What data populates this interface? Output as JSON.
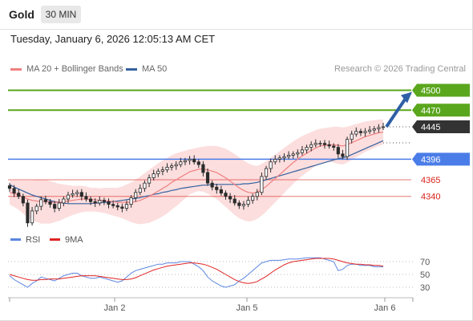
{
  "header": {
    "instrument": "Gold",
    "timeframe": "30 MIN",
    "timestamp": "Tuesday, January 6, 2026 12:05:13 AM CET"
  },
  "legend": {
    "ma_bands": "MA 20 + Bollinger Bands",
    "ma50": "MA 50",
    "credit": "Research © 2026 Trading Central"
  },
  "colors": {
    "candle": "#2b2b2b",
    "ma20": "#f08080",
    "bands": "#fcdede",
    "ma50": "#34619e",
    "resistance": "#5aa61d",
    "support": "#4b7de8",
    "support_text": "#d9231c",
    "current": "#333333",
    "rsi": "#5b86e0",
    "rsi_ma": "#e02424",
    "arrow": "#2f5fa6"
  },
  "chart_data": [
    {
      "type": "candlestick",
      "x_ticks": [
        "Jan 2",
        "Jan 5",
        "Jan 6"
      ],
      "ylim": [
        4290,
        4520
      ],
      "grid": false,
      "legend_position": "top-left",
      "price_levels": [
        {
          "label": "4500",
          "value": 4500,
          "kind": "resistance"
        },
        {
          "label": "4470",
          "value": 4470,
          "kind": "resistance"
        },
        {
          "label": "4445",
          "value": 4445,
          "kind": "current"
        },
        {
          "label": "4396",
          "value": 4396,
          "kind": "support-line"
        },
        {
          "label": "4365",
          "value": 4365,
          "kind": "support"
        },
        {
          "label": "4340",
          "value": 4340,
          "kind": "support"
        }
      ],
      "close": [
        4352,
        4345,
        4340,
        4330,
        4300,
        4318,
        4325,
        4335,
        4332,
        4328,
        4322,
        4330,
        4336,
        4342,
        4344,
        4346,
        4340,
        4336,
        4332,
        4330,
        4334,
        4332,
        4328,
        4326,
        4324,
        4322,
        4328,
        4338,
        4346,
        4352,
        4360,
        4368,
        4374,
        4378,
        4380,
        4384,
        4386,
        4388,
        4392,
        4394,
        4396,
        4392,
        4388,
        4376,
        4360,
        4354,
        4350,
        4345,
        4340,
        4336,
        4330,
        4326,
        4328,
        4334,
        4340,
        4346,
        4370,
        4382,
        4392,
        4396,
        4398,
        4400,
        4402,
        4404,
        4406,
        4410,
        4414,
        4418,
        4420,
        4420,
        4418,
        4416,
        4414,
        4404,
        4400,
        4426,
        4434,
        4438,
        4436,
        4438,
        4440,
        4442,
        4444,
        4445
      ],
      "ma20": [
        4346,
        4344,
        4342,
        4339,
        4336,
        4334,
        4333,
        4332,
        4332,
        4331,
        4331,
        4331,
        4332,
        4333,
        4334,
        4335,
        4336,
        4336,
        4335,
        4335,
        4334,
        4334,
        4333,
        4332,
        4331,
        4331,
        4331,
        4331,
        4332,
        4334,
        4337,
        4340,
        4344,
        4348,
        4352,
        4356,
        4361,
        4365,
        4369,
        4373,
        4377,
        4379,
        4381,
        4381,
        4380,
        4378,
        4376,
        4372,
        4368,
        4363,
        4358,
        4353,
        4349,
        4346,
        4345,
        4346,
        4350,
        4355,
        4361,
        4367,
        4373,
        4379,
        4385,
        4391,
        4396,
        4401,
        4405,
        4409,
        4413,
        4416,
        4417,
        4418,
        4418,
        4417,
        4416,
        4418,
        4421,
        4424,
        4427,
        4430,
        4432,
        4434,
        4436,
        4437
      ],
      "ma50": [
        4358,
        4354,
        4351,
        4348,
        4345,
        4342,
        4340,
        4338,
        4336,
        4334,
        4332,
        4331,
        4330,
        4329,
        4329,
        4329,
        4329,
        4329,
        4329,
        4330,
        4330,
        4331,
        4331,
        4332,
        4333,
        4334,
        4335,
        4336,
        4337,
        4338,
        4340,
        4341,
        4343,
        4344,
        4346,
        4347,
        4349,
        4350,
        4352,
        4353,
        4354,
        4355,
        4356,
        4357,
        4357,
        4358,
        4358,
        4358,
        4358,
        4358,
        4358,
        4358,
        4359,
        4359,
        4360,
        4361,
        4363,
        4365,
        4367,
        4369,
        4371,
        4373,
        4375,
        4377,
        4379,
        4381,
        4383,
        4385,
        4387,
        4389,
        4391,
        4393,
        4395,
        4397,
        4398,
        4400,
        4403,
        4406,
        4409,
        4412,
        4415,
        4418,
        4421,
        4424
      ],
      "band_half_width": [
        18,
        20,
        22,
        25,
        28,
        30,
        32,
        33,
        33,
        32,
        30,
        28,
        26,
        24,
        22,
        21,
        20,
        19,
        18,
        18,
        18,
        19,
        20,
        21,
        22,
        24,
        27,
        30,
        33,
        36,
        38,
        40,
        41,
        42,
        42,
        42,
        41,
        40,
        38,
        36,
        34,
        33,
        33,
        34,
        36,
        38,
        40,
        42,
        44,
        45,
        46,
        46,
        45,
        44,
        42,
        40,
        39,
        38,
        37,
        36,
        35,
        34,
        33,
        32,
        31,
        30,
        29,
        28,
        27,
        26,
        26,
        26,
        27,
        28,
        28,
        27,
        26,
        25,
        24,
        23,
        22,
        21,
        20,
        19
      ]
    },
    {
      "type": "line",
      "legend": [
        "RSI",
        "9MA"
      ],
      "ylim": [
        20,
        80
      ],
      "y_ticks": [
        70,
        50,
        30
      ],
      "rsi": [
        48,
        42,
        38,
        34,
        30,
        36,
        40,
        46,
        44,
        42,
        40,
        44,
        48,
        50,
        52,
        52,
        48,
        46,
        44,
        44,
        46,
        44,
        42,
        40,
        38,
        40,
        46,
        52,
        56,
        58,
        60,
        62,
        64,
        66,
        66,
        68,
        68,
        68,
        70,
        70,
        70,
        66,
        62,
        56,
        46,
        40,
        36,
        32,
        30,
        32,
        34,
        40,
        44,
        50,
        56,
        62,
        68,
        70,
        72,
        72,
        72,
        73,
        74,
        74,
        74,
        75,
        76,
        76,
        76,
        76,
        74,
        72,
        70,
        56,
        58,
        64,
        66,
        66,
        64,
        64,
        64,
        62,
        62,
        62
      ],
      "rsi_ma": [
        50,
        48,
        46,
        44,
        42,
        41,
        41,
        42,
        42,
        43,
        43,
        43,
        44,
        45,
        46,
        47,
        48,
        48,
        48,
        48,
        47,
        46,
        45,
        44,
        43,
        42,
        42,
        43,
        45,
        48,
        51,
        54,
        57,
        59,
        61,
        63,
        64,
        65,
        66,
        67,
        68,
        68,
        67,
        66,
        64,
        61,
        58,
        54,
        50,
        46,
        42,
        39,
        37,
        36,
        37,
        39,
        43,
        47,
        52,
        57,
        61,
        65,
        68,
        70,
        71,
        72,
        73,
        74,
        75,
        75,
        75,
        75,
        74,
        72,
        70,
        68,
        67,
        66,
        66,
        65,
        65,
        64,
        64,
        63
      ]
    }
  ]
}
